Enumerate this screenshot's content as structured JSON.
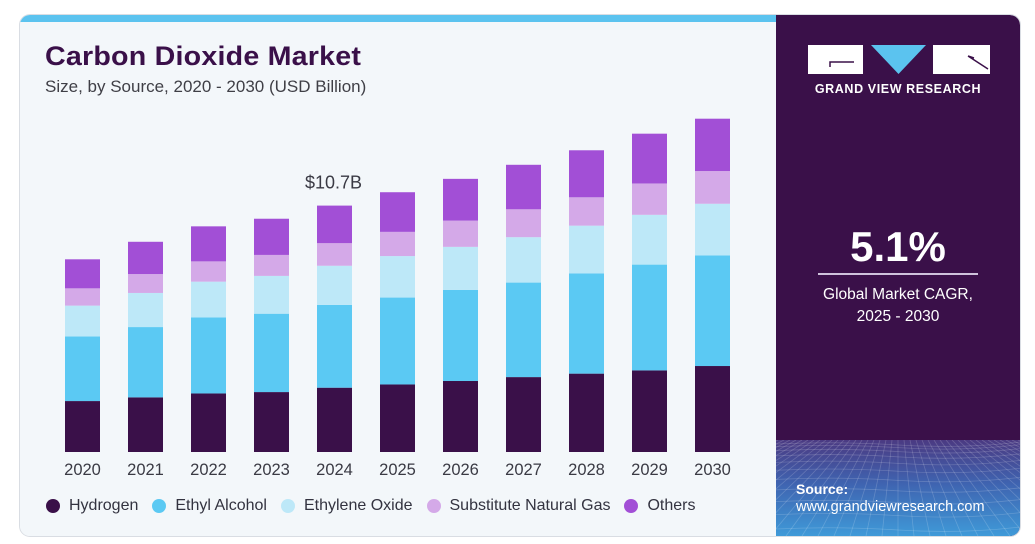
{
  "header": {
    "title": "Carbon Dioxide Market",
    "subtitle": "Size, by Source, 2020 - 2030 (USD Billion)"
  },
  "colors": {
    "accent": "#5bc3ef",
    "panel": "#3a1049",
    "Hydrogen": "#3a1049",
    "Ethyl Alcohol": "#5bc9f3",
    "Ethylene Oxide": "#bde8f8",
    "Substitute Natural Gas": "#d4a9e8",
    "Others": "#a24fd6"
  },
  "side_panel": {
    "brand": "GRAND VIEW RESEARCH",
    "logo_icon": "gvr-logo-icon",
    "cagr_value": "5.1%",
    "cagr_label_line1": "Global Market CAGR,",
    "cagr_label_line2": "2025 - 2030",
    "source_label": "Source:",
    "source_url": "www.grandviewresearch.com"
  },
  "chart_data": {
    "type": "bar",
    "stacked": true,
    "title": "Carbon Dioxide Market",
    "subtitle": "Size, by Source, 2020 - 2030 (USD Billion)",
    "xlabel": "",
    "ylabel": "",
    "categories": [
      "2020",
      "2021",
      "2022",
      "2023",
      "2024",
      "2025",
      "2026",
      "2027",
      "2028",
      "2029",
      "2030"
    ],
    "series": [
      {
        "name": "Hydrogen",
        "values": [
          2.21,
          2.37,
          2.54,
          2.6,
          2.79,
          2.93,
          3.08,
          3.25,
          3.4,
          3.54,
          3.73
        ]
      },
      {
        "name": "Ethyl Alcohol",
        "values": [
          2.8,
          3.05,
          3.3,
          3.4,
          3.59,
          3.77,
          3.95,
          4.1,
          4.35,
          4.59,
          4.8
        ]
      },
      {
        "name": "Ethylene Oxide",
        "values": [
          1.34,
          1.48,
          1.55,
          1.64,
          1.7,
          1.8,
          1.87,
          1.97,
          2.07,
          2.16,
          2.24
        ]
      },
      {
        "name": "Substitute Natural Gas",
        "values": [
          0.75,
          0.82,
          0.88,
          0.91,
          0.98,
          1.05,
          1.14,
          1.21,
          1.23,
          1.36,
          1.42
        ]
      },
      {
        "name": "Others",
        "values": [
          1.26,
          1.4,
          1.52,
          1.57,
          1.63,
          1.72,
          1.81,
          1.93,
          2.04,
          2.16,
          2.27
        ]
      }
    ],
    "annotations": [
      {
        "category": "2024",
        "text": "$10.7B"
      }
    ],
    "ylim": [
      0,
      15
    ],
    "grid": false,
    "legend": "bottom"
  }
}
